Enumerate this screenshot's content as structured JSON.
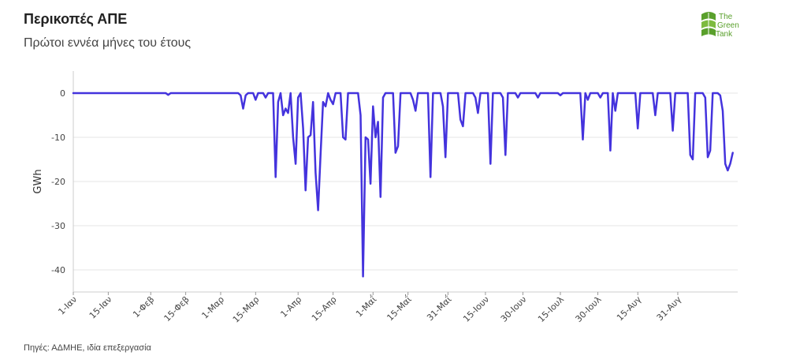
{
  "header": {
    "title": "Περικοπές ΑΠΕ",
    "subtitle": "Πρώτοι εννέα μήνες του έτους"
  },
  "footer": {
    "source": "Πηγές: ΑΔΜΗΕ, ιδία επεξεργασία"
  },
  "logo": {
    "line1": "The",
    "line2": "Green",
    "line3": "Tank",
    "color": "#5aa02c"
  },
  "chart_data": {
    "type": "line",
    "title": "Περικοπές ΑΠΕ",
    "subtitle": "Πρώτοι εννέα μήνες του έτους",
    "ylabel": "GWh",
    "xlabel": "",
    "ylim": [
      -45,
      5
    ],
    "xlim_days": [
      0,
      266
    ],
    "yticks": [
      0,
      -10,
      -20,
      -30,
      -40
    ],
    "xticks": [
      {
        "day": 0,
        "label": "1-Ιαν"
      },
      {
        "day": 14,
        "label": "15-Ιαν"
      },
      {
        "day": 31,
        "label": "1-Φεβ"
      },
      {
        "day": 45,
        "label": "15-Φεβ"
      },
      {
        "day": 59,
        "label": "1-Μαρ"
      },
      {
        "day": 73,
        "label": "15-Μαρ"
      },
      {
        "day": 90,
        "label": "1-Απρ"
      },
      {
        "day": 104,
        "label": "15-Απρ"
      },
      {
        "day": 120,
        "label": "1-Μαΐ"
      },
      {
        "day": 134,
        "label": "15-Μαΐ"
      },
      {
        "day": 150,
        "label": "31-Μαΐ"
      },
      {
        "day": 165,
        "label": "15-Ιουν"
      },
      {
        "day": 180,
        "label": "30-Ιουν"
      },
      {
        "day": 195,
        "label": "15-Ιουλ"
      },
      {
        "day": 210,
        "label": "30-Ιουλ"
      },
      {
        "day": 226,
        "label": "15-Αυγ"
      },
      {
        "day": 242,
        "label": "31-Αυγ"
      }
    ],
    "grid": true,
    "line_color": "#4433dd",
    "series": [
      {
        "values": [
          [
            0,
            0
          ],
          [
            30,
            0
          ],
          [
            37,
            0
          ],
          [
            38,
            -0.4
          ],
          [
            39,
            0
          ],
          [
            66,
            0
          ],
          [
            67,
            -0.5
          ],
          [
            68,
            -3.5
          ],
          [
            69,
            -0.5
          ],
          [
            70,
            0
          ],
          [
            72,
            0
          ],
          [
            73,
            -1.5
          ],
          [
            74,
            0
          ],
          [
            76,
            0
          ],
          [
            77,
            -1
          ],
          [
            78,
            0
          ],
          [
            80,
            0
          ],
          [
            81,
            -19
          ],
          [
            82,
            -2
          ],
          [
            83,
            0
          ],
          [
            84,
            -5
          ],
          [
            85,
            -3.5
          ],
          [
            86,
            -4.5
          ],
          [
            87,
            0
          ],
          [
            88,
            -10
          ],
          [
            89,
            -16
          ],
          [
            90,
            -1
          ],
          [
            91,
            0
          ],
          [
            92,
            -8
          ],
          [
            93,
            -22
          ],
          [
            94,
            -10
          ],
          [
            95,
            -9.5
          ],
          [
            96,
            -2
          ],
          [
            97,
            -18
          ],
          [
            98,
            -26.5
          ],
          [
            99,
            -14
          ],
          [
            100,
            -2
          ],
          [
            101,
            -3
          ],
          [
            102,
            0
          ],
          [
            103,
            -1.5
          ],
          [
            104,
            -2.5
          ],
          [
            105,
            0
          ],
          [
            107,
            0
          ],
          [
            108,
            -10
          ],
          [
            109,
            -10.5
          ],
          [
            110,
            0
          ],
          [
            114,
            0
          ],
          [
            115,
            -5
          ],
          [
            116,
            -41.5
          ],
          [
            117,
            -10
          ],
          [
            118,
            -10.5
          ],
          [
            119,
            -20.5
          ],
          [
            120,
            -3
          ],
          [
            121,
            -10
          ],
          [
            122,
            -6.5
          ],
          [
            123,
            -23.5
          ],
          [
            124,
            -1
          ],
          [
            125,
            0
          ],
          [
            128,
            0
          ],
          [
            129,
            -13.5
          ],
          [
            130,
            -12
          ],
          [
            131,
            0
          ],
          [
            135,
            0
          ],
          [
            136,
            -1.5
          ],
          [
            137,
            -4
          ],
          [
            138,
            0
          ],
          [
            142,
            0
          ],
          [
            143,
            -19
          ],
          [
            144,
            0
          ],
          [
            147,
            0
          ],
          [
            148,
            -3
          ],
          [
            149,
            -14.5
          ],
          [
            150,
            0
          ],
          [
            154,
            0
          ],
          [
            155,
            -6
          ],
          [
            156,
            -7.5
          ],
          [
            157,
            0
          ],
          [
            160,
            0
          ],
          [
            161,
            -1
          ],
          [
            162,
            -4.5
          ],
          [
            163,
            0
          ],
          [
            166,
            0
          ],
          [
            167,
            -16
          ],
          [
            168,
            0
          ],
          [
            171,
            0
          ],
          [
            172,
            -1
          ],
          [
            173,
            -14
          ],
          [
            174,
            0
          ],
          [
            177,
            0
          ],
          [
            178,
            -1
          ],
          [
            179,
            0
          ],
          [
            185,
            0
          ],
          [
            186,
            -1
          ],
          [
            187,
            0
          ],
          [
            194,
            0
          ],
          [
            195,
            -0.5
          ],
          [
            196,
            0
          ],
          [
            203,
            0
          ],
          [
            204,
            -10.5
          ],
          [
            205,
            0
          ],
          [
            206,
            -1.5
          ],
          [
            207,
            0
          ],
          [
            210,
            0
          ],
          [
            211,
            -1
          ],
          [
            212,
            0
          ],
          [
            214,
            0
          ],
          [
            215,
            -13
          ],
          [
            216,
            0
          ],
          [
            217,
            -4
          ],
          [
            218,
            0
          ],
          [
            225,
            0
          ],
          [
            226,
            -8
          ],
          [
            227,
            0
          ],
          [
            232,
            0
          ],
          [
            233,
            -5
          ],
          [
            234,
            0
          ],
          [
            239,
            0
          ],
          [
            240,
            -8.5
          ],
          [
            241,
            0
          ],
          [
            246,
            0
          ],
          [
            247,
            -14
          ],
          [
            248,
            -15
          ],
          [
            249,
            0
          ],
          [
            252,
            0
          ],
          [
            253,
            -1
          ],
          [
            254,
            -14.5
          ],
          [
            255,
            -13
          ],
          [
            256,
            0
          ],
          [
            258,
            0
          ],
          [
            259,
            -0.5
          ],
          [
            260,
            -4
          ],
          [
            261,
            -16
          ],
          [
            262,
            -17.5
          ],
          [
            263,
            -16
          ],
          [
            264,
            -13.5
          ]
        ]
      }
    ]
  }
}
